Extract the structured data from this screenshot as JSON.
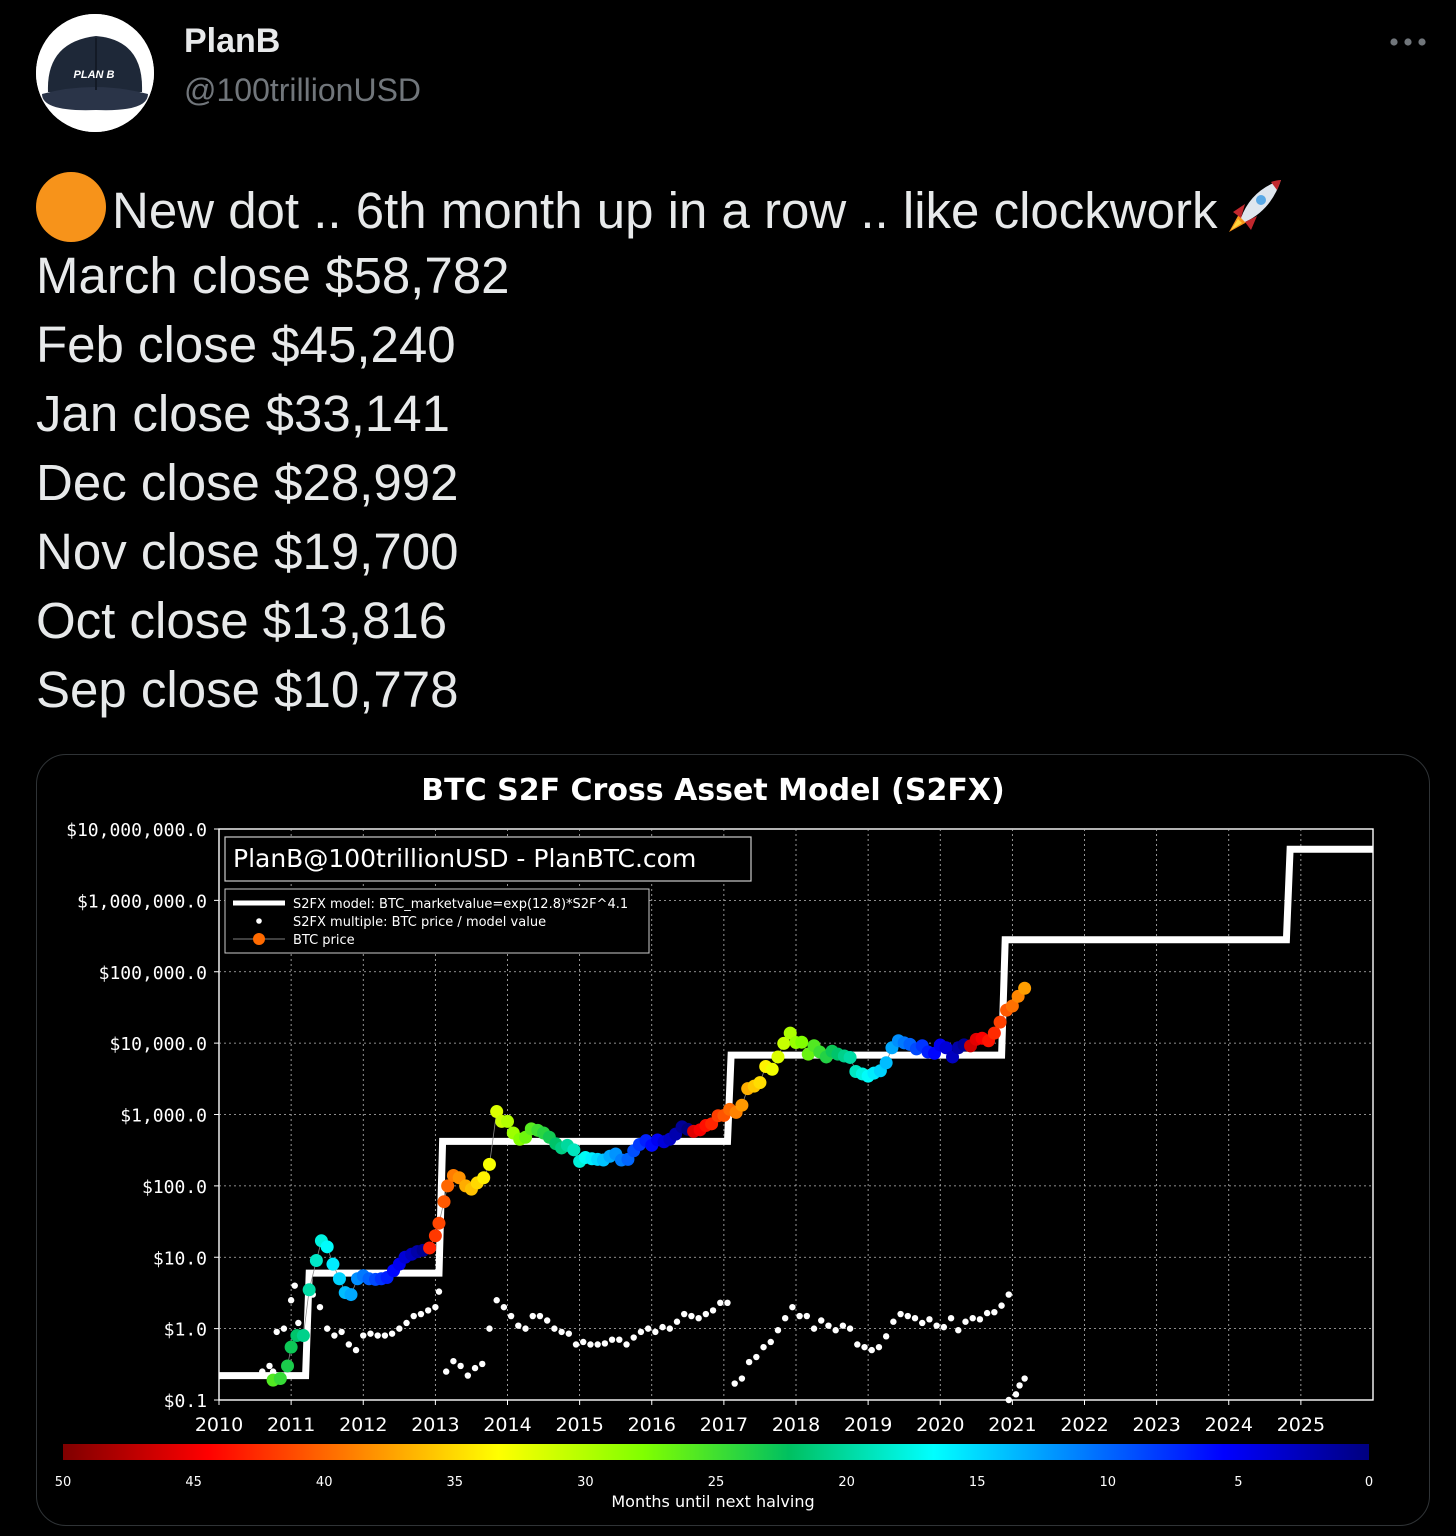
{
  "author": {
    "name": "PlanB",
    "handle": "@100trillionUSD",
    "avatar_icon": "cap-avatar-icon",
    "avatar_cap_text": "PLAN B"
  },
  "tweet": {
    "first_line": "New dot .. 6th month up in a row .. like clockwork",
    "closes": [
      "March close $58,782",
      "Feb close $45,240",
      "Jan close $33,141",
      "Dec close $28,992",
      "Nov close $19,700",
      "Oct close $13,816",
      "Sep close $10,778"
    ]
  },
  "colors": {
    "bitcoin_orange": "#f7931a",
    "background": "#000000"
  },
  "chart_data": {
    "type": "scatter",
    "title": "BTC S2F Cross Asset Model (S2FX)",
    "watermark": "PlanB@100trillionUSD  -  PlanBTC.com",
    "yscale": "log",
    "ylim": [
      0.1,
      10000000
    ],
    "xlim": [
      2010,
      2026
    ],
    "y_ticks": [
      "$0.1",
      "$1.0",
      "$10.0",
      "$100.0",
      "$1,000.0",
      "$10,000.0",
      "$100,000.0",
      "$1,000,000.0",
      "$10,000,000.0"
    ],
    "x_ticks": [
      "2010",
      "2011",
      "2012",
      "2013",
      "2014",
      "2015",
      "2016",
      "2017",
      "2018",
      "2019",
      "2020",
      "2021",
      "2022",
      "2023",
      "2024",
      "2025"
    ],
    "grid": true,
    "legend_placement": "upper-left",
    "legend": [
      "S2FX model: BTC_marketvalue=exp(12.8)*S2F^4.1",
      "S2FX multiple: BTC price / model value",
      "BTC price"
    ],
    "model_steps": [
      [
        2010.0,
        0.22
      ],
      [
        2011.2,
        0.22
      ],
      [
        2011.25,
        6
      ],
      [
        2013.05,
        6
      ],
      [
        2013.1,
        420
      ],
      [
        2017.05,
        420
      ],
      [
        2017.1,
        6800
      ],
      [
        2020.85,
        6800
      ],
      [
        2020.9,
        280000
      ],
      [
        2024.8,
        280000
      ],
      [
        2024.85,
        5200000
      ],
      [
        2026.0,
        5200000
      ]
    ],
    "btc_price": [
      [
        2010.75,
        0.19
      ],
      [
        2010.85,
        0.2
      ],
      [
        2010.95,
        0.3
      ],
      [
        2011.0,
        0.55
      ],
      [
        2011.08,
        0.8
      ],
      [
        2011.17,
        0.8
      ],
      [
        2011.25,
        3.5
      ],
      [
        2011.35,
        9
      ],
      [
        2011.42,
        17
      ],
      [
        2011.5,
        14
      ],
      [
        2011.58,
        8
      ],
      [
        2011.67,
        5
      ],
      [
        2011.75,
        3.2
      ],
      [
        2011.83,
        3
      ],
      [
        2011.92,
        5
      ],
      [
        2012.0,
        5.5
      ],
      [
        2012.08,
        5
      ],
      [
        2012.17,
        4.9
      ],
      [
        2012.25,
        5
      ],
      [
        2012.33,
        5.2
      ],
      [
        2012.42,
        6.5
      ],
      [
        2012.5,
        8
      ],
      [
        2012.58,
        10
      ],
      [
        2012.67,
        11
      ],
      [
        2012.75,
        12
      ],
      [
        2012.83,
        12.5
      ],
      [
        2012.92,
        13.5
      ],
      [
        2013.0,
        20
      ],
      [
        2013.05,
        30
      ],
      [
        2013.12,
        60
      ],
      [
        2013.17,
        100
      ],
      [
        2013.25,
        140
      ],
      [
        2013.33,
        130
      ],
      [
        2013.42,
        100
      ],
      [
        2013.5,
        90
      ],
      [
        2013.58,
        110
      ],
      [
        2013.67,
        130
      ],
      [
        2013.75,
        200
      ],
      [
        2013.85,
        1100
      ],
      [
        2013.92,
        800
      ],
      [
        2014.0,
        800
      ],
      [
        2014.08,
        550
      ],
      [
        2014.17,
        450
      ],
      [
        2014.25,
        480
      ],
      [
        2014.33,
        630
      ],
      [
        2014.42,
        600
      ],
      [
        2014.5,
        550
      ],
      [
        2014.58,
        480
      ],
      [
        2014.67,
        390
      ],
      [
        2014.75,
        340
      ],
      [
        2014.83,
        370
      ],
      [
        2014.92,
        320
      ],
      [
        2015.0,
        220
      ],
      [
        2015.08,
        250
      ],
      [
        2015.17,
        240
      ],
      [
        2015.25,
        235
      ],
      [
        2015.33,
        230
      ],
      [
        2015.42,
        260
      ],
      [
        2015.5,
        280
      ],
      [
        2015.58,
        230
      ],
      [
        2015.67,
        235
      ],
      [
        2015.75,
        310
      ],
      [
        2015.83,
        380
      ],
      [
        2015.92,
        430
      ],
      [
        2016.0,
        370
      ],
      [
        2016.08,
        440
      ],
      [
        2016.17,
        415
      ],
      [
        2016.25,
        450
      ],
      [
        2016.33,
        530
      ],
      [
        2016.42,
        670
      ],
      [
        2016.5,
        620
      ],
      [
        2016.58,
        580
      ],
      [
        2016.67,
        610
      ],
      [
        2016.75,
        700
      ],
      [
        2016.83,
        740
      ],
      [
        2016.92,
        960
      ],
      [
        2017.0,
        970
      ],
      [
        2017.08,
        1180
      ],
      [
        2017.17,
        1070
      ],
      [
        2017.25,
        1350
      ],
      [
        2017.33,
        2300
      ],
      [
        2017.42,
        2500
      ],
      [
        2017.5,
        2800
      ],
      [
        2017.58,
        4700
      ],
      [
        2017.67,
        4300
      ],
      [
        2017.75,
        6400
      ],
      [
        2017.83,
        9900
      ],
      [
        2017.92,
        13800
      ],
      [
        2018.0,
        10200
      ],
      [
        2018.08,
        10300
      ],
      [
        2018.17,
        7000
      ],
      [
        2018.25,
        9200
      ],
      [
        2018.33,
        7500
      ],
      [
        2018.42,
        6400
      ],
      [
        2018.5,
        7700
      ],
      [
        2018.58,
        7000
      ],
      [
        2018.67,
        6600
      ],
      [
        2018.75,
        6300
      ],
      [
        2018.83,
        4000
      ],
      [
        2018.92,
        3700
      ],
      [
        2019.0,
        3450
      ],
      [
        2019.08,
        3800
      ],
      [
        2019.17,
        4100
      ],
      [
        2019.25,
        5300
      ],
      [
        2019.33,
        8600
      ],
      [
        2019.42,
        10800
      ],
      [
        2019.5,
        10100
      ],
      [
        2019.58,
        9600
      ],
      [
        2019.67,
        8300
      ],
      [
        2019.75,
        9200
      ],
      [
        2019.83,
        7500
      ],
      [
        2019.92,
        7200
      ],
      [
        2020.0,
        9400
      ],
      [
        2020.08,
        8600
      ],
      [
        2020.17,
        6400
      ],
      [
        2020.25,
        8600
      ],
      [
        2020.33,
        9450
      ],
      [
        2020.42,
        9150
      ],
      [
        2020.5,
        11300
      ],
      [
        2020.58,
        11700
      ],
      [
        2020.67,
        10778
      ],
      [
        2020.75,
        13816
      ],
      [
        2020.83,
        19700
      ],
      [
        2020.92,
        28992
      ],
      [
        2021.0,
        33141
      ],
      [
        2021.08,
        45240
      ],
      [
        2021.17,
        58782
      ]
    ],
    "s2fx_multiple": [
      [
        2010.6,
        0.25
      ],
      [
        2010.7,
        0.3
      ],
      [
        2010.75,
        0.25
      ],
      [
        2010.8,
        0.9
      ],
      [
        2010.9,
        1.0
      ],
      [
        2011.0,
        2.5
      ],
      [
        2011.05,
        4
      ],
      [
        2011.1,
        1.2
      ],
      [
        2011.2,
        0.9
      ],
      [
        2011.3,
        3
      ],
      [
        2011.4,
        2
      ],
      [
        2011.5,
        1
      ],
      [
        2011.6,
        0.8
      ],
      [
        2011.7,
        0.9
      ],
      [
        2011.8,
        0.6
      ],
      [
        2011.9,
        0.5
      ],
      [
        2012.0,
        0.8
      ],
      [
        2012.1,
        0.85
      ],
      [
        2012.2,
        0.8
      ],
      [
        2012.3,
        0.8
      ],
      [
        2012.4,
        0.85
      ],
      [
        2012.5,
        1.0
      ],
      [
        2012.6,
        1.2
      ],
      [
        2012.7,
        1.5
      ],
      [
        2012.8,
        1.6
      ],
      [
        2012.9,
        1.8
      ],
      [
        2013.0,
        2.0
      ],
      [
        2013.05,
        3.3
      ],
      [
        2013.15,
        0.25
      ],
      [
        2013.25,
        0.35
      ],
      [
        2013.35,
        0.3
      ],
      [
        2013.45,
        0.22
      ],
      [
        2013.55,
        0.28
      ],
      [
        2013.65,
        0.32
      ],
      [
        2013.75,
        1.0
      ],
      [
        2013.85,
        2.5
      ],
      [
        2013.95,
        2.0
      ],
      [
        2014.05,
        1.5
      ],
      [
        2014.15,
        1.1
      ],
      [
        2014.25,
        1.0
      ],
      [
        2014.35,
        1.5
      ],
      [
        2014.45,
        1.5
      ],
      [
        2014.55,
        1.3
      ],
      [
        2014.65,
        1.0
      ],
      [
        2014.75,
        0.9
      ],
      [
        2014.85,
        0.85
      ],
      [
        2014.95,
        0.6
      ],
      [
        2015.05,
        0.65
      ],
      [
        2015.15,
        0.6
      ],
      [
        2015.25,
        0.6
      ],
      [
        2015.35,
        0.62
      ],
      [
        2015.45,
        0.7
      ],
      [
        2015.55,
        0.7
      ],
      [
        2015.65,
        0.6
      ],
      [
        2015.75,
        0.75
      ],
      [
        2015.85,
        0.9
      ],
      [
        2015.95,
        1.0
      ],
      [
        2016.05,
        0.9
      ],
      [
        2016.15,
        1.05
      ],
      [
        2016.25,
        1.0
      ],
      [
        2016.35,
        1.25
      ],
      [
        2016.45,
        1.6
      ],
      [
        2016.55,
        1.5
      ],
      [
        2016.65,
        1.4
      ],
      [
        2016.75,
        1.6
      ],
      [
        2016.85,
        1.8
      ],
      [
        2016.95,
        2.3
      ],
      [
        2017.05,
        2.3
      ],
      [
        2017.15,
        0.17
      ],
      [
        2017.25,
        0.2
      ],
      [
        2017.35,
        0.34
      ],
      [
        2017.45,
        0.4
      ],
      [
        2017.55,
        0.55
      ],
      [
        2017.65,
        0.65
      ],
      [
        2017.75,
        0.95
      ],
      [
        2017.85,
        1.4
      ],
      [
        2017.95,
        2.0
      ],
      [
        2018.05,
        1.5
      ],
      [
        2018.15,
        1.5
      ],
      [
        2018.25,
        1.0
      ],
      [
        2018.35,
        1.3
      ],
      [
        2018.45,
        1.1
      ],
      [
        2018.55,
        0.95
      ],
      [
        2018.65,
        1.1
      ],
      [
        2018.75,
        1.0
      ],
      [
        2018.85,
        0.6
      ],
      [
        2018.95,
        0.55
      ],
      [
        2019.05,
        0.5
      ],
      [
        2019.15,
        0.55
      ],
      [
        2019.25,
        0.78
      ],
      [
        2019.35,
        1.25
      ],
      [
        2019.45,
        1.6
      ],
      [
        2019.55,
        1.5
      ],
      [
        2019.65,
        1.4
      ],
      [
        2019.75,
        1.2
      ],
      [
        2019.85,
        1.35
      ],
      [
        2019.95,
        1.1
      ],
      [
        2020.05,
        1.05
      ],
      [
        2020.15,
        1.4
      ],
      [
        2020.25,
        0.95
      ],
      [
        2020.35,
        1.25
      ],
      [
        2020.45,
        1.4
      ],
      [
        2020.55,
        1.35
      ],
      [
        2020.65,
        1.65
      ],
      [
        2020.75,
        1.7
      ],
      [
        2020.85,
        2.1
      ],
      [
        2020.95,
        3.0
      ],
      [
        2020.95,
        0.1
      ],
      [
        2021.05,
        0.12
      ],
      [
        2021.1,
        0.16
      ],
      [
        2021.17,
        0.2
      ]
    ],
    "colorbar": {
      "label": "Months until next halving",
      "ticks": [
        "50",
        "45",
        "40",
        "35",
        "30",
        "25",
        "20",
        "15",
        "10",
        "5",
        "0"
      ],
      "range": [
        50,
        0
      ],
      "stops": [
        "#7f0000",
        "#ff0000",
        "#ff8000",
        "#ffff00",
        "#80ff00",
        "#00c060",
        "#00ffff",
        "#0080ff",
        "#0000ff",
        "#00007f"
      ]
    },
    "halvings": [
      2012.9,
      2016.5,
      2020.4,
      2024.3
    ]
  }
}
